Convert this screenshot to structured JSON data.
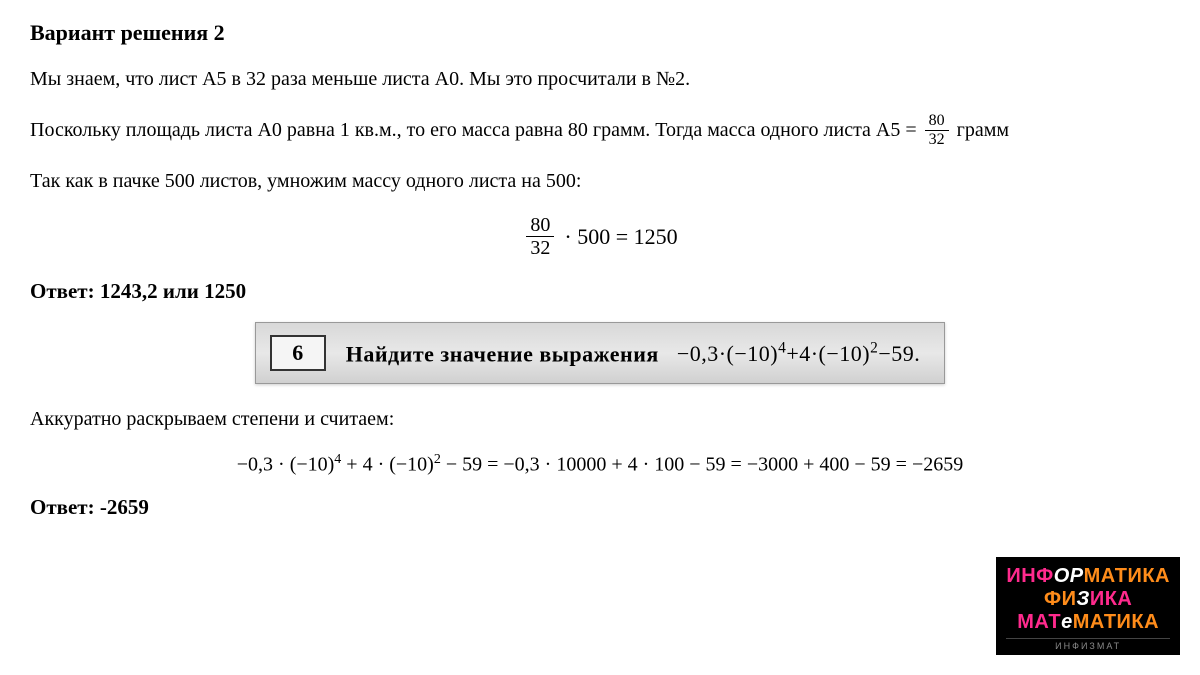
{
  "heading": "Вариант решения 2",
  "p1": "Мы знаем, что лист А5 в 32 раза меньше листа А0. Мы это просчитали в №2.",
  "p2_before": "Поскольку площадь листа А0 равна 1 кв.м., то его масса равна 80 грамм. Тогда масса одного листа А5 =",
  "p2_frac_num": "80",
  "p2_frac_den": "32",
  "p2_after": "грамм",
  "p3": "Так как в пачке 500 листов, умножим массу одного листа на 500:",
  "eq1_frac_num": "80",
  "eq1_frac_den": "32",
  "eq1_rest": "· 500 = 1250",
  "answer1": "Ответ: 1243,2 или 1250",
  "task_number": "6",
  "task_label": "Найдите значение выражения",
  "task_expr_html": "−0,3·(−10)<sup>4</sup>+4·(−10)<sup>2</sup>−59.",
  "p4": "Аккуратно раскрываем степени и считаем:",
  "eq2_html": "−0,3 · (−10)<sup>4</sup> + 4 · (−10)<sup>2</sup> − 59 = −0,3 · 10000 + 4 · 100 − 59 = −3000 + 400 − 59 = −2659",
  "answer2": "Ответ: -2659",
  "logo": {
    "line1_p1": "ИНФ",
    "line1_p2": "ОР",
    "line1_p3": "МАТИКА",
    "line2_p1": "ФИ",
    "line2_p2": "З",
    "line2_p3": "ИКА",
    "line3_p1": "МАТ",
    "line3_p2": "е",
    "line3_p3": "МАТИКА",
    "sub": "ИНФИЗМАТ"
  },
  "colors": {
    "bg": "#ffffff",
    "text": "#000000",
    "taskbox_bg": "#dcdcdc",
    "logo_bg": "#000000",
    "logo_pink": "#ff2a8d",
    "logo_orange": "#ff8c1a",
    "logo_white": "#ffffff"
  }
}
